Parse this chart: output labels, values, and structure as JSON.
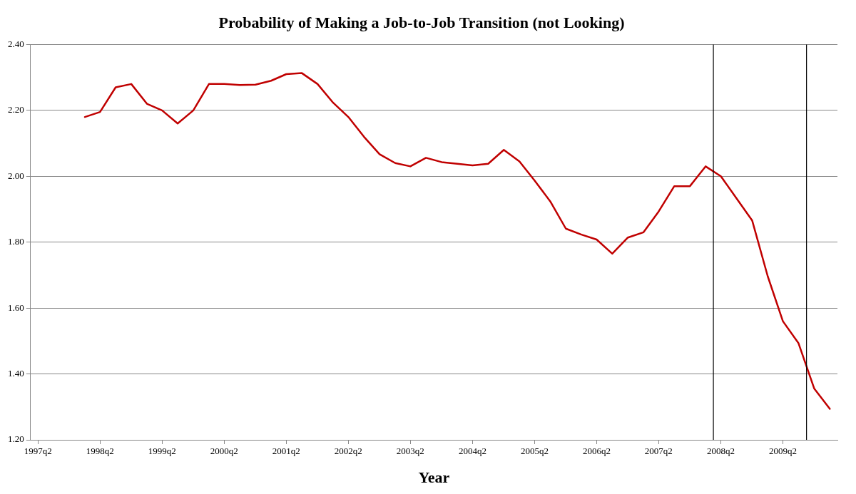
{
  "chart_data": {
    "type": "line",
    "title": "Probability of Making a Job-to-Job Transition (not Looking)",
    "xlabel": "Year",
    "x": [
      "1998-02-15",
      "1998-05-15",
      "1998-08-15",
      "1998-11-15",
      "1999-02-15",
      "1999-05-15",
      "1999-08-15",
      "1999-11-15",
      "2000-02-15",
      "2000-05-15",
      "2000-08-15",
      "2000-11-15",
      "2001-02-15",
      "2001-05-15",
      "2001-08-15",
      "2001-11-15",
      "2002-02-15",
      "2002-05-15",
      "2002-08-15",
      "2002-11-15",
      "2003-02-15",
      "2003-05-15",
      "2003-08-15",
      "2003-11-15",
      "2004-02-15",
      "2004-05-15",
      "2004-08-15",
      "2004-11-15",
      "2005-02-15",
      "2005-05-15",
      "2005-08-15",
      "2005-11-15",
      "2006-02-15",
      "2006-05-15",
      "2006-08-15",
      "2006-11-15",
      "2007-02-15",
      "2007-05-15",
      "2007-08-15",
      "2007-11-15",
      "2008-02-15",
      "2008-05-15",
      "2008-08-15",
      "2008-11-15",
      "2009-02-15",
      "2009-05-15",
      "2009-08-15",
      "2009-11-15",
      "2010-02-15"
    ],
    "series": [
      {
        "color": "#c00000",
        "values": [
          2.18,
          2.195,
          2.27,
          2.28,
          2.22,
          2.2,
          2.16,
          2.2,
          2.28,
          2.28,
          2.277,
          2.278,
          2.29,
          2.31,
          2.313,
          2.28,
          2.223,
          2.18,
          2.12,
          2.067,
          2.04,
          2.03,
          2.056,
          2.043,
          2.038,
          2.033,
          2.038,
          2.08,
          2.045,
          1.987,
          1.924,
          1.841,
          1.823,
          1.808,
          1.765,
          1.814,
          1.83,
          1.893,
          1.97,
          1.97,
          2.03,
          2.0,
          1.933,
          1.866,
          1.696,
          1.56,
          1.493,
          1.356,
          1.294
        ]
      }
    ],
    "xlim": [
      "1997-04-01",
      "2010-04-01"
    ],
    "xticks": [
      {
        "value": "1997-05-15",
        "label": "1997q2"
      },
      {
        "value": "1998-05-15",
        "label": "1998q2"
      },
      {
        "value": "1999-05-15",
        "label": "1999q2"
      },
      {
        "value": "2000-05-15",
        "label": "2000q2"
      },
      {
        "value": "2001-05-15",
        "label": "2001q2"
      },
      {
        "value": "2002-05-15",
        "label": "2002q2"
      },
      {
        "value": "2003-05-15",
        "label": "2003q2"
      },
      {
        "value": "2004-05-15",
        "label": "2004q2"
      },
      {
        "value": "2005-05-15",
        "label": "2005q2"
      },
      {
        "value": "2006-05-15",
        "label": "2006q2"
      },
      {
        "value": "2007-05-15",
        "label": "2007q2"
      },
      {
        "value": "2008-05-15",
        "label": "2008q2"
      },
      {
        "value": "2009-05-15",
        "label": "2009q2"
      }
    ],
    "ylim": [
      1.2,
      2.4
    ],
    "yticks": [
      {
        "value": 1.2,
        "label": "1.20"
      },
      {
        "value": 1.4,
        "label": "1.40"
      },
      {
        "value": 1.6,
        "label": "1.60"
      },
      {
        "value": 1.8,
        "label": "1.80"
      },
      {
        "value": 2.0,
        "label": "2.00"
      },
      {
        "value": 2.2,
        "label": "2.20"
      },
      {
        "value": 2.4,
        "label": "2.40"
      }
    ],
    "grid": "y",
    "legend": false,
    "marker": "none",
    "line_style": "solid",
    "ref_lines": [
      {
        "axis": "x",
        "value": "2008-04",
        "color": "#000000"
      },
      {
        "axis": "x",
        "value": "2009-10",
        "color": "#000000"
      }
    ]
  }
}
